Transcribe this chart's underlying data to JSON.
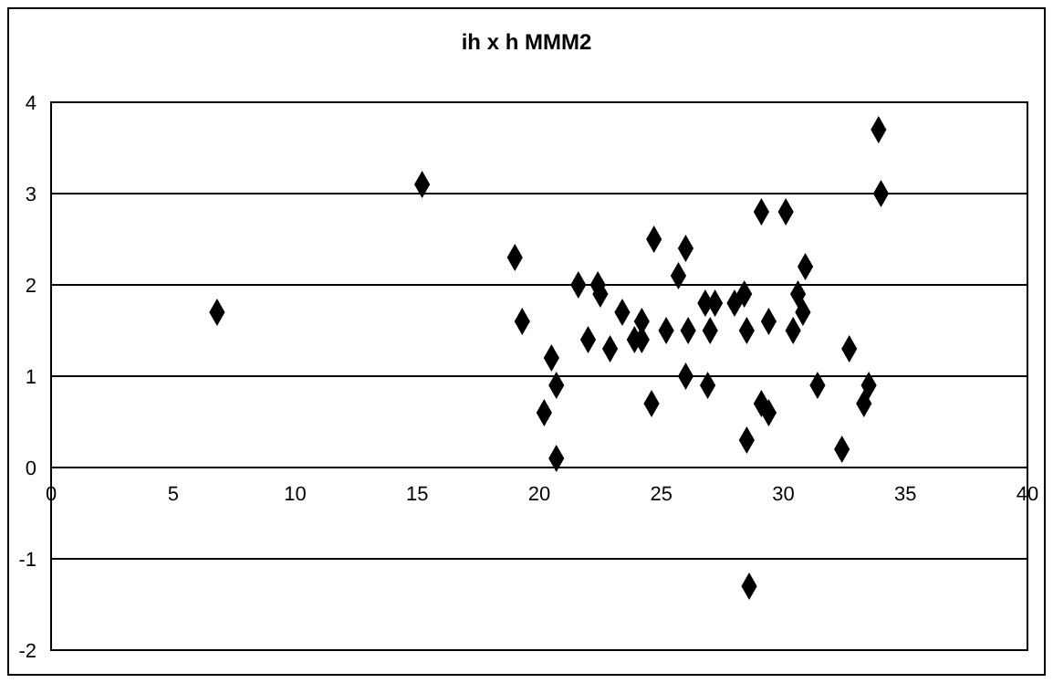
{
  "chart_data": {
    "type": "scatter",
    "title": "ih x h MMM2",
    "x": [
      6.8,
      15.2,
      19.0,
      19.3,
      20.5,
      20.2,
      20.7,
      20.7,
      21.6,
      22.0,
      22.4,
      22.5,
      22.9,
      23.4,
      23.9,
      24.2,
      24.2,
      24.6,
      24.7,
      25.2,
      25.7,
      26.0,
      26.0,
      26.1,
      26.8,
      27.2,
      27.0,
      26.9,
      28.0,
      28.4,
      28.5,
      28.5,
      28.6,
      29.1,
      29.1,
      29.4,
      29.4,
      30.1,
      30.4,
      30.6,
      30.8,
      30.9,
      31.4,
      32.4,
      32.7,
      33.3,
      33.5,
      33.9,
      34.0
    ],
    "values": [
      1.7,
      3.1,
      2.3,
      1.6,
      1.2,
      0.6,
      0.9,
      0.1,
      2.0,
      1.4,
      2.0,
      1.9,
      1.3,
      1.7,
      1.4,
      1.4,
      1.6,
      0.7,
      2.5,
      1.5,
      2.1,
      2.4,
      1.0,
      1.5,
      1.8,
      1.8,
      1.5,
      0.9,
      1.8,
      1.9,
      1.5,
      0.3,
      -1.3,
      2.8,
      0.7,
      0.6,
      1.6,
      2.8,
      1.5,
      1.9,
      1.7,
      2.2,
      0.9,
      0.2,
      1.3,
      0.7,
      0.9,
      3.7,
      3.0
    ],
    "color": "#000000",
    "marker": "diamond",
    "grid": "y",
    "legend": false,
    "xlim": [
      0,
      40
    ],
    "xticks": [
      0,
      5,
      10,
      15,
      20,
      25,
      30,
      35,
      40
    ],
    "ylim": [
      -2,
      4
    ],
    "yticks": [
      -2,
      -1,
      0,
      1,
      2,
      3,
      4
    ]
  }
}
